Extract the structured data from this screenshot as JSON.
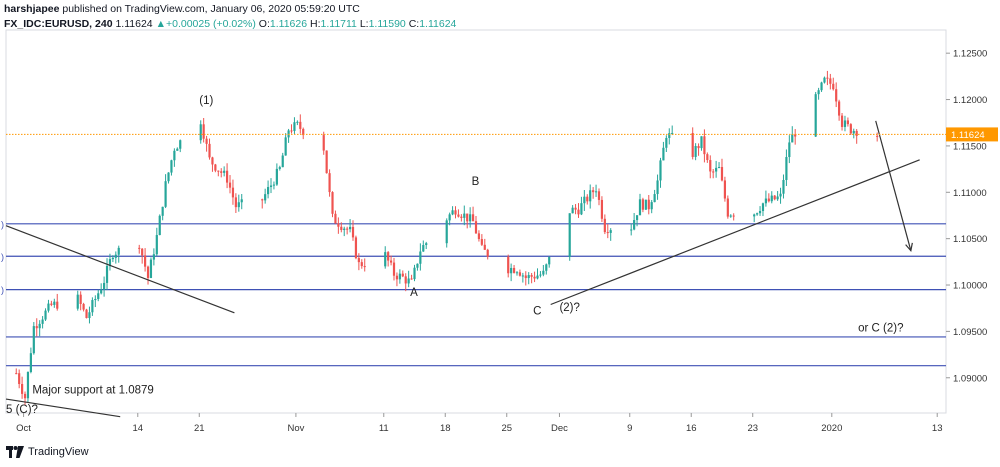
{
  "header": {
    "author": "harshjapee",
    "published_text": "published on TradingView.com, January 06, 2020 05:59:20 UTC",
    "symbol": "FX_IDC:EURUSD, 240",
    "last": "1.11624",
    "change": "+0.00025 (+0.02%)",
    "o_label": "O:",
    "o_value": "1.11626",
    "h_label": "H:",
    "h_value": "1.11711",
    "l_label": "L:",
    "l_value": "1.11590",
    "c_label": "C:",
    "c_value": "1.11624"
  },
  "footer": {
    "brand": "TradingView"
  },
  "colors": {
    "up": "#26a69a",
    "down": "#ef5350",
    "level_line": "#3f51b5",
    "trend_line": "#333333",
    "price_line": "#ff9800",
    "price_tag": "#ff9800"
  },
  "chart_data": {
    "type": "candlestick",
    "symbol": "EURUSD",
    "timeframe": "240",
    "ylim": [
      1.0862,
      1.1275
    ],
    "y_ticks": [
      "1.12500",
      "1.12000",
      "1.11500",
      "1.11000",
      "1.10500",
      "1.10000",
      "1.09500",
      "1.09000"
    ],
    "y_tick_values": [
      1.125,
      1.12,
      1.115,
      1.11,
      1.105,
      1.1,
      1.095,
      1.09
    ],
    "x_ticks": [
      "Oct",
      "14",
      "21",
      "Nov",
      "11",
      "18",
      "25",
      "Dec",
      "9",
      "16",
      "23",
      "2020",
      "13"
    ],
    "x_tick_dates": [
      "2019-10-01",
      "2019-10-14",
      "2019-10-21",
      "2019-11-01",
      "2019-11-11",
      "2019-11-18",
      "2019-11-25",
      "2019-12-01",
      "2019-12-09",
      "2019-12-16",
      "2019-12-23",
      "2020-01-01",
      "2020-01-13"
    ],
    "xlim": [
      "2019-09-29",
      "2020-01-14"
    ],
    "current_price_label": "1.11624",
    "current_price": 1.11624,
    "path": [
      [
        "2019-09-30",
        1.0905
      ],
      [
        "2019-10-01",
        1.0879
      ],
      [
        "2019-10-02",
        1.0955
      ],
      [
        "2019-10-04",
        1.0978
      ],
      [
        "2019-10-07",
        1.0985
      ],
      [
        "2019-10-08",
        1.0965
      ],
      [
        "2019-10-10",
        1.1005
      ],
      [
        "2019-10-11",
        1.1035
      ],
      [
        "2019-10-14",
        1.1045
      ],
      [
        "2019-10-15",
        1.1008
      ],
      [
        "2019-10-16",
        1.1052
      ],
      [
        "2019-10-17",
        1.1108
      ],
      [
        "2019-10-18",
        1.1148
      ],
      [
        "2019-10-21",
        1.1178
      ],
      [
        "2019-10-22",
        1.1135
      ],
      [
        "2019-10-24",
        1.1115
      ],
      [
        "2019-10-25",
        1.1085
      ],
      [
        "2019-10-28",
        1.1092
      ],
      [
        "2019-10-29",
        1.1108
      ],
      [
        "2019-10-30",
        1.1125
      ],
      [
        "2019-10-31",
        1.1168
      ],
      [
        "2019-11-01",
        1.1172
      ],
      [
        "2019-11-04",
        1.1148
      ],
      [
        "2019-11-05",
        1.1072
      ],
      [
        "2019-11-07",
        1.1058
      ],
      [
        "2019-11-08",
        1.1022
      ],
      [
        "2019-11-11",
        1.1032
      ],
      [
        "2019-11-12",
        1.1012
      ],
      [
        "2019-11-13",
        1.1008
      ],
      [
        "2019-11-14",
        1.1002
      ],
      [
        "2019-11-15",
        1.1038
      ],
      [
        "2019-11-18",
        1.1072
      ],
      [
        "2019-11-19",
        1.1082
      ],
      [
        "2019-11-21",
        1.1068
      ],
      [
        "2019-11-22",
        1.1038
      ],
      [
        "2019-11-25",
        1.1018
      ],
      [
        "2019-11-26",
        1.1018
      ],
      [
        "2019-11-27",
        1.1008
      ],
      [
        "2019-11-29",
        1.1012
      ],
      [
        "2019-12-02",
        1.108
      ],
      [
        "2019-12-03",
        1.1082
      ],
      [
        "2019-12-05",
        1.1105
      ],
      [
        "2019-12-06",
        1.1062
      ],
      [
        "2019-12-09",
        1.1063
      ],
      [
        "2019-12-10",
        1.1088
      ],
      [
        "2019-12-11",
        1.1085
      ],
      [
        "2019-12-12",
        1.1112
      ],
      [
        "2019-12-13",
        1.1163
      ],
      [
        "2019-12-16",
        1.1142
      ],
      [
        "2019-12-17",
        1.1155
      ],
      [
        "2019-12-18",
        1.112
      ],
      [
        "2019-12-19",
        1.1125
      ],
      [
        "2019-12-20",
        1.1078
      ],
      [
        "2019-12-23",
        1.1078
      ],
      [
        "2019-12-24",
        1.1088
      ],
      [
        "2019-12-26",
        1.1095
      ],
      [
        "2019-12-27",
        1.1155
      ],
      [
        "2019-12-30",
        1.12
      ],
      [
        "2019-12-31",
        1.122
      ],
      [
        "2020-01-01",
        1.1216
      ],
      [
        "2020-01-02",
        1.1175
      ],
      [
        "2020-01-03",
        1.1168
      ],
      [
        "2020-01-06",
        1.11624
      ]
    ],
    "horizontal_levels": [
      1.1066,
      1.1031,
      1.0995,
      1.0944,
      1.0913
    ],
    "trend_lines": [
      {
        "from": [
          "2019-09-29",
          1.1064
        ],
        "to": [
          "2019-10-25",
          1.097
        ]
      },
      {
        "from": [
          "2019-09-29",
          1.0877
        ],
        "to": [
          "2019-10-12",
          1.0858
        ]
      },
      {
        "from": [
          "2019-11-30",
          1.0979
        ],
        "to": [
          "2020-01-11",
          1.1135
        ]
      }
    ],
    "projection_arrow": {
      "from": [
        "2020-01-06",
        1.1177
      ],
      "to": [
        "2020-01-10",
        1.1037
      ]
    },
    "annotations": [
      {
        "text": "(1)",
        "date": "2019-10-21",
        "price": 1.1195
      },
      {
        "text": "B",
        "date": "2019-11-21",
        "price": 1.1108
      },
      {
        "text": "A",
        "date": "2019-11-14",
        "price": 1.0988
      },
      {
        "text": "C",
        "date": "2019-11-28",
        "price": 1.0968
      },
      {
        "text": "(2)?",
        "date": "2019-12-01",
        "price": 1.0972
      },
      {
        "text": "or C (2)?",
        "date": "2020-01-04",
        "price": 1.095
      },
      {
        "text": "Major support at 1.0879",
        "date": "2019-10-02",
        "price": 1.0883
      },
      {
        "text": "5 (C)?",
        "date": "2019-09-29",
        "price": 1.0862
      }
    ]
  }
}
